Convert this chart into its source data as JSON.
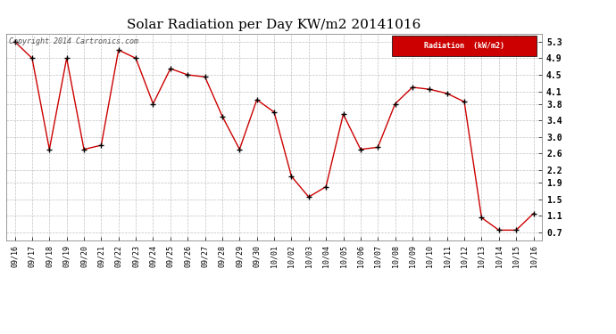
{
  "title": "Solar Radiation per Day KW/m2 20141016",
  "dates": [
    "09/16",
    "09/17",
    "09/18",
    "09/19",
    "09/20",
    "09/21",
    "09/22",
    "09/23",
    "09/24",
    "09/25",
    "09/26",
    "09/27",
    "09/28",
    "09/29",
    "09/30",
    "10/01",
    "10/02",
    "10/03",
    "10/04",
    "10/05",
    "10/06",
    "10/07",
    "10/08",
    "10/09",
    "10/10",
    "10/11",
    "10/12",
    "10/13",
    "10/14",
    "10/15",
    "10/16"
  ],
  "values": [
    5.3,
    4.9,
    2.7,
    4.9,
    2.7,
    2.8,
    5.1,
    4.9,
    3.8,
    4.65,
    4.5,
    4.45,
    3.5,
    2.7,
    3.9,
    3.6,
    2.05,
    1.55,
    1.8,
    3.55,
    2.7,
    2.75,
    3.8,
    4.2,
    4.15,
    4.05,
    3.85,
    1.05,
    0.75,
    0.75,
    1.15
  ],
  "line_color": "#cc0000",
  "marker_color": "#000000",
  "bg_color": "#ffffff",
  "grid_color": "#b0b0b0",
  "legend_label": "Radiation  (kW/m2)",
  "legend_bg": "#cc0000",
  "legend_text_color": "#ffffff",
  "copyright_text": "Copyright 2014 Cartronics.com",
  "yticks": [
    0.7,
    1.1,
    1.5,
    1.9,
    2.2,
    2.6,
    3.0,
    3.4,
    3.8,
    4.1,
    4.5,
    4.9,
    5.3
  ],
  "ylim": [
    0.5,
    5.5
  ],
  "title_fontsize": 11,
  "tick_fontsize": 6,
  "ytick_fontsize": 7,
  "copyright_fontsize": 6
}
